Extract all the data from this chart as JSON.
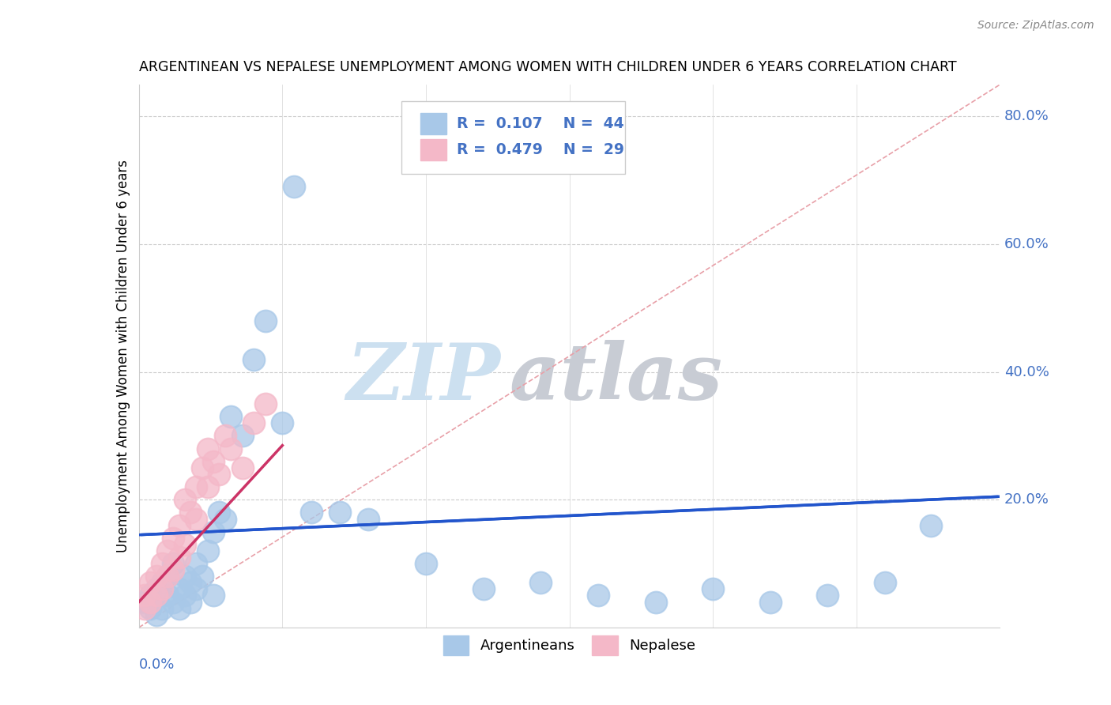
{
  "title": "ARGENTINEAN VS NEPALESE UNEMPLOYMENT AMONG WOMEN WITH CHILDREN UNDER 6 YEARS CORRELATION CHART",
  "source": "Source: ZipAtlas.com",
  "ylabel": "Unemployment Among Women with Children Under 6 years",
  "xmin": 0.0,
  "xmax": 0.15,
  "ymin": 0.0,
  "ymax": 0.85,
  "color_arg": "#a8c8e8",
  "color_nep": "#f4b8c8",
  "color_arg_line": "#2255cc",
  "color_nep_line": "#cc3366",
  "color_diag": "#e8a0a8",
  "watermark_zip": "#cce0f0",
  "watermark_atlas": "#c8ccd4",
  "arg_x": [
    0.001,
    0.002,
    0.002,
    0.003,
    0.003,
    0.004,
    0.004,
    0.005,
    0.005,
    0.006,
    0.006,
    0.007,
    0.007,
    0.008,
    0.008,
    0.009,
    0.009,
    0.01,
    0.01,
    0.011,
    0.012,
    0.013,
    0.013,
    0.014,
    0.015,
    0.016,
    0.018,
    0.02,
    0.022,
    0.025,
    0.03,
    0.035,
    0.04,
    0.05,
    0.06,
    0.07,
    0.08,
    0.09,
    0.1,
    0.11,
    0.12,
    0.13,
    0.138,
    0.027
  ],
  "arg_y": [
    0.04,
    0.05,
    0.03,
    0.06,
    0.02,
    0.07,
    0.03,
    0.05,
    0.08,
    0.04,
    0.1,
    0.06,
    0.03,
    0.08,
    0.05,
    0.07,
    0.04,
    0.1,
    0.06,
    0.08,
    0.12,
    0.15,
    0.05,
    0.18,
    0.17,
    0.33,
    0.3,
    0.42,
    0.48,
    0.32,
    0.18,
    0.18,
    0.17,
    0.1,
    0.06,
    0.07,
    0.05,
    0.04,
    0.06,
    0.04,
    0.05,
    0.07,
    0.16,
    0.69
  ],
  "nep_x": [
    0.001,
    0.001,
    0.002,
    0.002,
    0.003,
    0.003,
    0.004,
    0.004,
    0.005,
    0.005,
    0.006,
    0.006,
    0.007,
    0.007,
    0.008,
    0.008,
    0.009,
    0.01,
    0.01,
    0.011,
    0.012,
    0.012,
    0.013,
    0.014,
    0.015,
    0.016,
    0.018,
    0.02,
    0.022
  ],
  "nep_y": [
    0.03,
    0.05,
    0.04,
    0.07,
    0.05,
    0.08,
    0.06,
    0.1,
    0.08,
    0.12,
    0.09,
    0.14,
    0.11,
    0.16,
    0.13,
    0.2,
    0.18,
    0.22,
    0.17,
    0.25,
    0.22,
    0.28,
    0.26,
    0.24,
    0.3,
    0.28,
    0.25,
    0.32,
    0.35
  ],
  "arg_trend_x0": 0.0,
  "arg_trend_y0": 0.145,
  "arg_trend_x1": 0.15,
  "arg_trend_y1": 0.205,
  "nep_trend_x0": 0.0,
  "nep_trend_y0": 0.04,
  "nep_trend_x1": 0.025,
  "nep_trend_y1": 0.285
}
